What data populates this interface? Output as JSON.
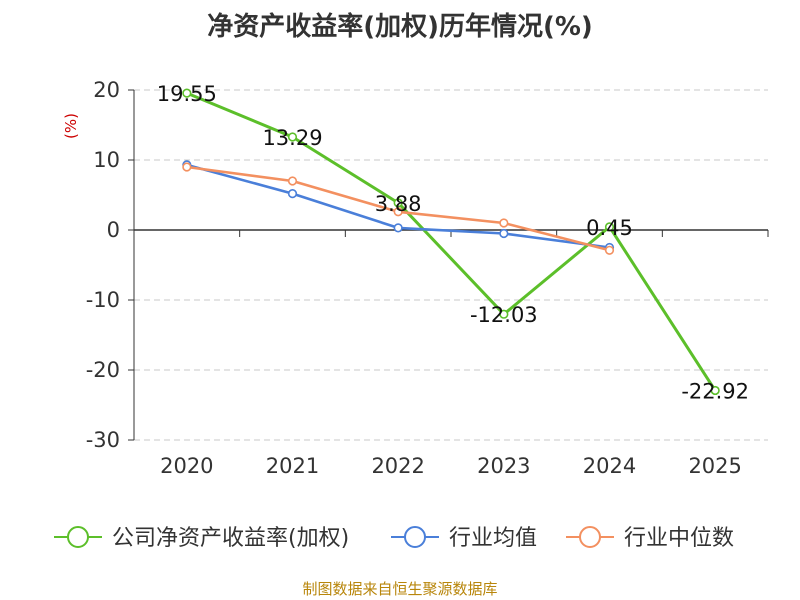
{
  "chart_data": {
    "type": "line",
    "title": "净资产收益率(加权)历年情况(%)",
    "ylabel": "(%)",
    "xlabel": "",
    "categories": [
      "2020",
      "2021",
      "2022",
      "2023",
      "2024",
      "2025"
    ],
    "ylim": [
      -30,
      20
    ],
    "yticks": [
      20,
      10,
      0,
      -10,
      -20,
      -30
    ],
    "ytick_labels": [
      "20",
      "10",
      "0",
      "-10",
      "-20",
      "-30"
    ],
    "grid": true,
    "legend_position": "bottom",
    "series": [
      {
        "name": "公司净资产收益率(加权)",
        "color": "#5cbf2a",
        "values": [
          19.55,
          13.29,
          3.88,
          -12.03,
          0.45,
          -22.92
        ],
        "labels": [
          "19.55",
          "13.29",
          "3.88",
          "-12.03",
          "0.45",
          "-22.92"
        ]
      },
      {
        "name": "行业均值",
        "color": "#4a7fd9",
        "values": [
          9.3,
          5.2,
          0.3,
          -0.5,
          -2.5,
          null
        ]
      },
      {
        "name": "行业中位数",
        "color": "#f39060",
        "values": [
          9.0,
          7.0,
          2.6,
          1.0,
          -2.9,
          null
        ]
      }
    ],
    "source": "制图数据来自恒生聚源数据库"
  }
}
